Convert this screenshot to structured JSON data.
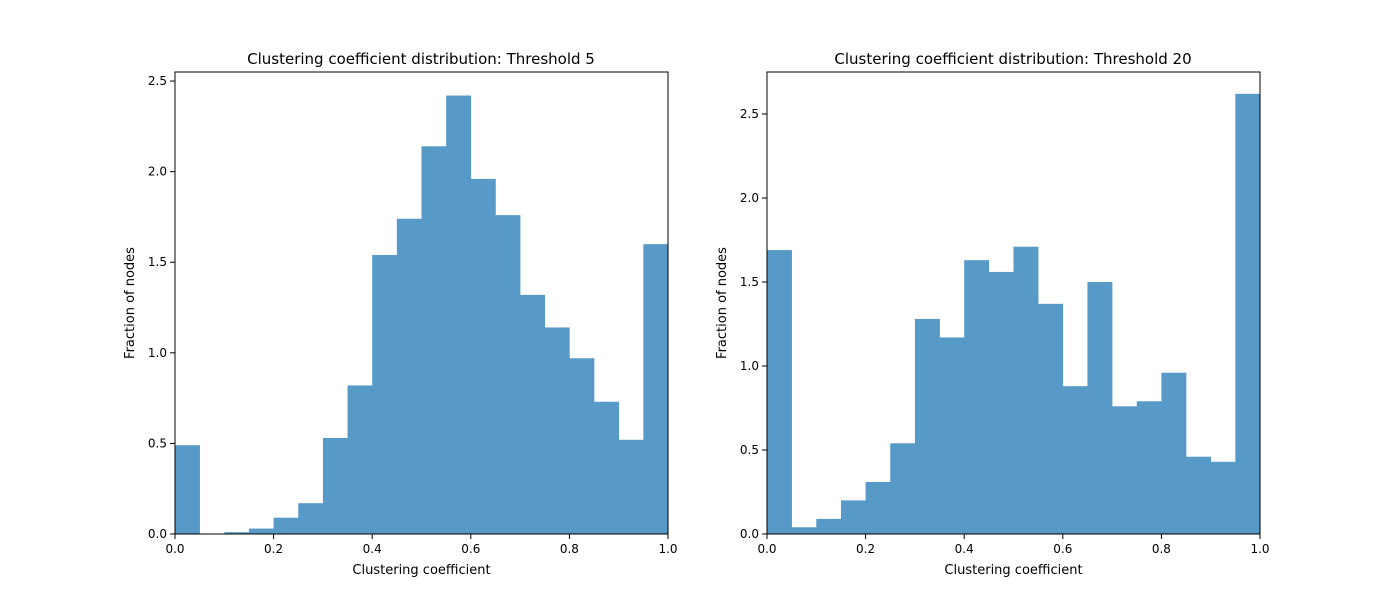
{
  "chart_data": [
    {
      "type": "bar",
      "title": "Clustering coefficient distribution: Threshold 5",
      "xlabel": "Clustering coefficient",
      "ylabel": "Fraction of nodes",
      "xlim": [
        0,
        1
      ],
      "ylim": [
        0,
        2.55
      ],
      "xticks": [
        "0.0",
        "0.2",
        "0.4",
        "0.6",
        "0.8",
        "1.0"
      ],
      "yticks": [
        "0.0",
        "0.5",
        "1.0",
        "1.5",
        "2.0",
        "2.5"
      ],
      "bin_width": 0.05,
      "bins": [
        0.0,
        0.05,
        0.1,
        0.15,
        0.2,
        0.25,
        0.3,
        0.35,
        0.4,
        0.45,
        0.5,
        0.55,
        0.6,
        0.65,
        0.7,
        0.75,
        0.8,
        0.85,
        0.9,
        0.95
      ],
      "values": [
        0.49,
        0.0,
        0.01,
        0.03,
        0.09,
        0.17,
        0.53,
        0.82,
        1.54,
        1.74,
        2.14,
        2.42,
        1.96,
        1.76,
        1.32,
        1.14,
        0.97,
        0.73,
        0.52,
        1.6
      ],
      "color": "#5799c7",
      "grid": false
    },
    {
      "type": "bar",
      "title": "Clustering coefficient distribution: Threshold 20",
      "xlabel": "Clustering coefficient",
      "ylabel": "Fraction of nodes",
      "xlim": [
        0,
        1
      ],
      "ylim": [
        0,
        2.75
      ],
      "xticks": [
        "0.0",
        "0.2",
        "0.4",
        "0.6",
        "0.8",
        "1.0"
      ],
      "yticks": [
        "0.0",
        "0.5",
        "1.0",
        "1.5",
        "2.0",
        "2.5"
      ],
      "bin_width": 0.05,
      "bins": [
        0.0,
        0.05,
        0.1,
        0.15,
        0.2,
        0.25,
        0.3,
        0.35,
        0.4,
        0.45,
        0.5,
        0.55,
        0.6,
        0.65,
        0.7,
        0.75,
        0.8,
        0.85,
        0.9,
        0.95
      ],
      "values": [
        1.69,
        0.04,
        0.09,
        0.2,
        0.31,
        0.54,
        1.28,
        1.17,
        1.63,
        1.56,
        1.71,
        1.37,
        0.88,
        1.5,
        0.76,
        0.79,
        0.96,
        0.46,
        0.43,
        2.62
      ],
      "color": "#5799c7",
      "grid": false
    }
  ]
}
